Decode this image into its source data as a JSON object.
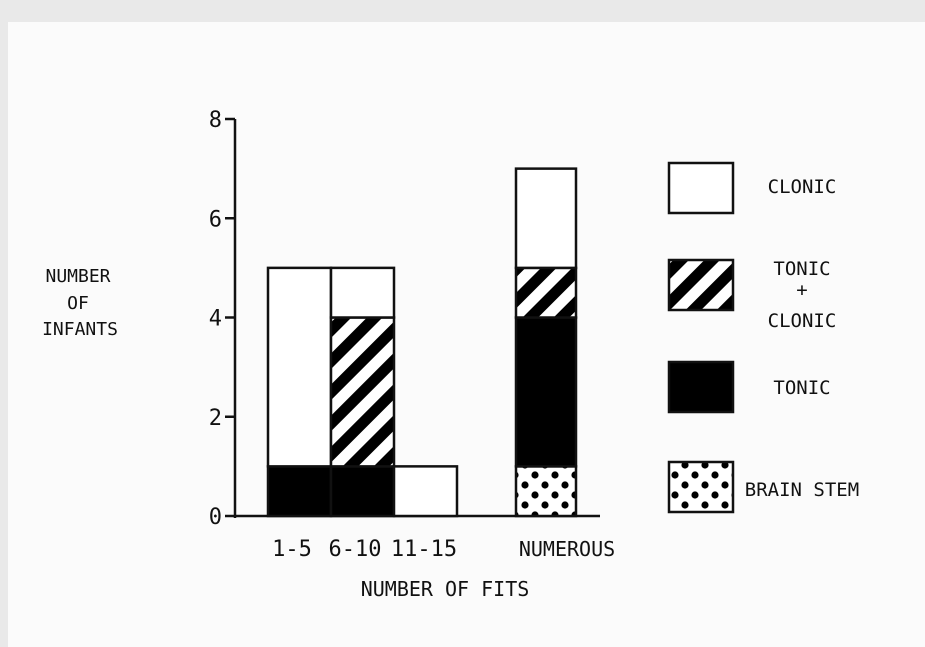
{
  "chart_data": {
    "type": "bar",
    "stacked": true,
    "categories": [
      "1-5",
      "6-10",
      "11-15",
      "NUMEROUS"
    ],
    "series": [
      {
        "name": "BRAIN STEM",
        "values": [
          0,
          0,
          0,
          1
        ],
        "pattern": "dots",
        "color": "#000000"
      },
      {
        "name": "TONIC",
        "values": [
          1,
          1,
          0,
          3
        ],
        "pattern": "solid",
        "color": "#000000"
      },
      {
        "name": "TONIC + CLONIC",
        "values": [
          0,
          3,
          0,
          1
        ],
        "pattern": "diagonal-stripes",
        "color": "#000000"
      },
      {
        "name": "CLONIC",
        "values": [
          4,
          1,
          1,
          2
        ],
        "pattern": "white",
        "color": "#ffffff"
      }
    ],
    "ylabel": [
      "NUMBER",
      "OF",
      "INFANTS"
    ],
    "xlabel": "NUMBER OF FITS",
    "ylim": [
      0,
      8
    ],
    "yticks": [
      "0",
      "2",
      "4",
      "6",
      "8"
    ],
    "legend_position": "right",
    "legend_items": [
      {
        "label_lines": [
          "CLONIC"
        ],
        "pattern": "white"
      },
      {
        "label_lines": [
          "TONIC",
          "+",
          "CLONIC"
        ],
        "pattern": "diagonal-stripes"
      },
      {
        "label_lines": [
          "TONIC"
        ],
        "pattern": "solid"
      },
      {
        "label_lines": [
          "BRAIN STEM"
        ],
        "pattern": "dots"
      }
    ],
    "grid": false
  }
}
